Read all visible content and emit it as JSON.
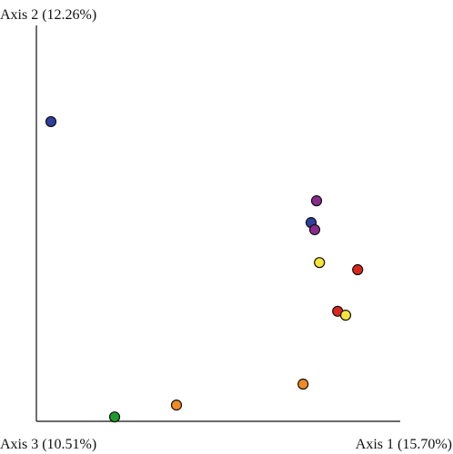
{
  "chart_data": {
    "type": "scatter",
    "y_label": "Axis 2 (12.26%)",
    "x_label": "Axis 1 (15.70%)",
    "z_label": "Axis 3 (10.51%)",
    "xlim": [
      0,
      100
    ],
    "ylim": [
      0,
      100
    ],
    "x": [
      4,
      77,
      75.5,
      76.5,
      77.8,
      88.3,
      82.8,
      85,
      73.3,
      38.5,
      21.5
    ],
    "values": [
      75.7,
      55.7,
      50.2,
      48.4,
      40.1,
      38.3,
      27.8,
      26.8,
      9.4,
      4.1,
      1.1
    ],
    "colors": [
      "#2e3f9e",
      "#8a2a8e",
      "#2e3f9e",
      "#8a2a8e",
      "#f6e43a",
      "#d8261d",
      "#d8261d",
      "#f6e43a",
      "#f08a26",
      "#f08a26",
      "#1f9a2d"
    ]
  }
}
